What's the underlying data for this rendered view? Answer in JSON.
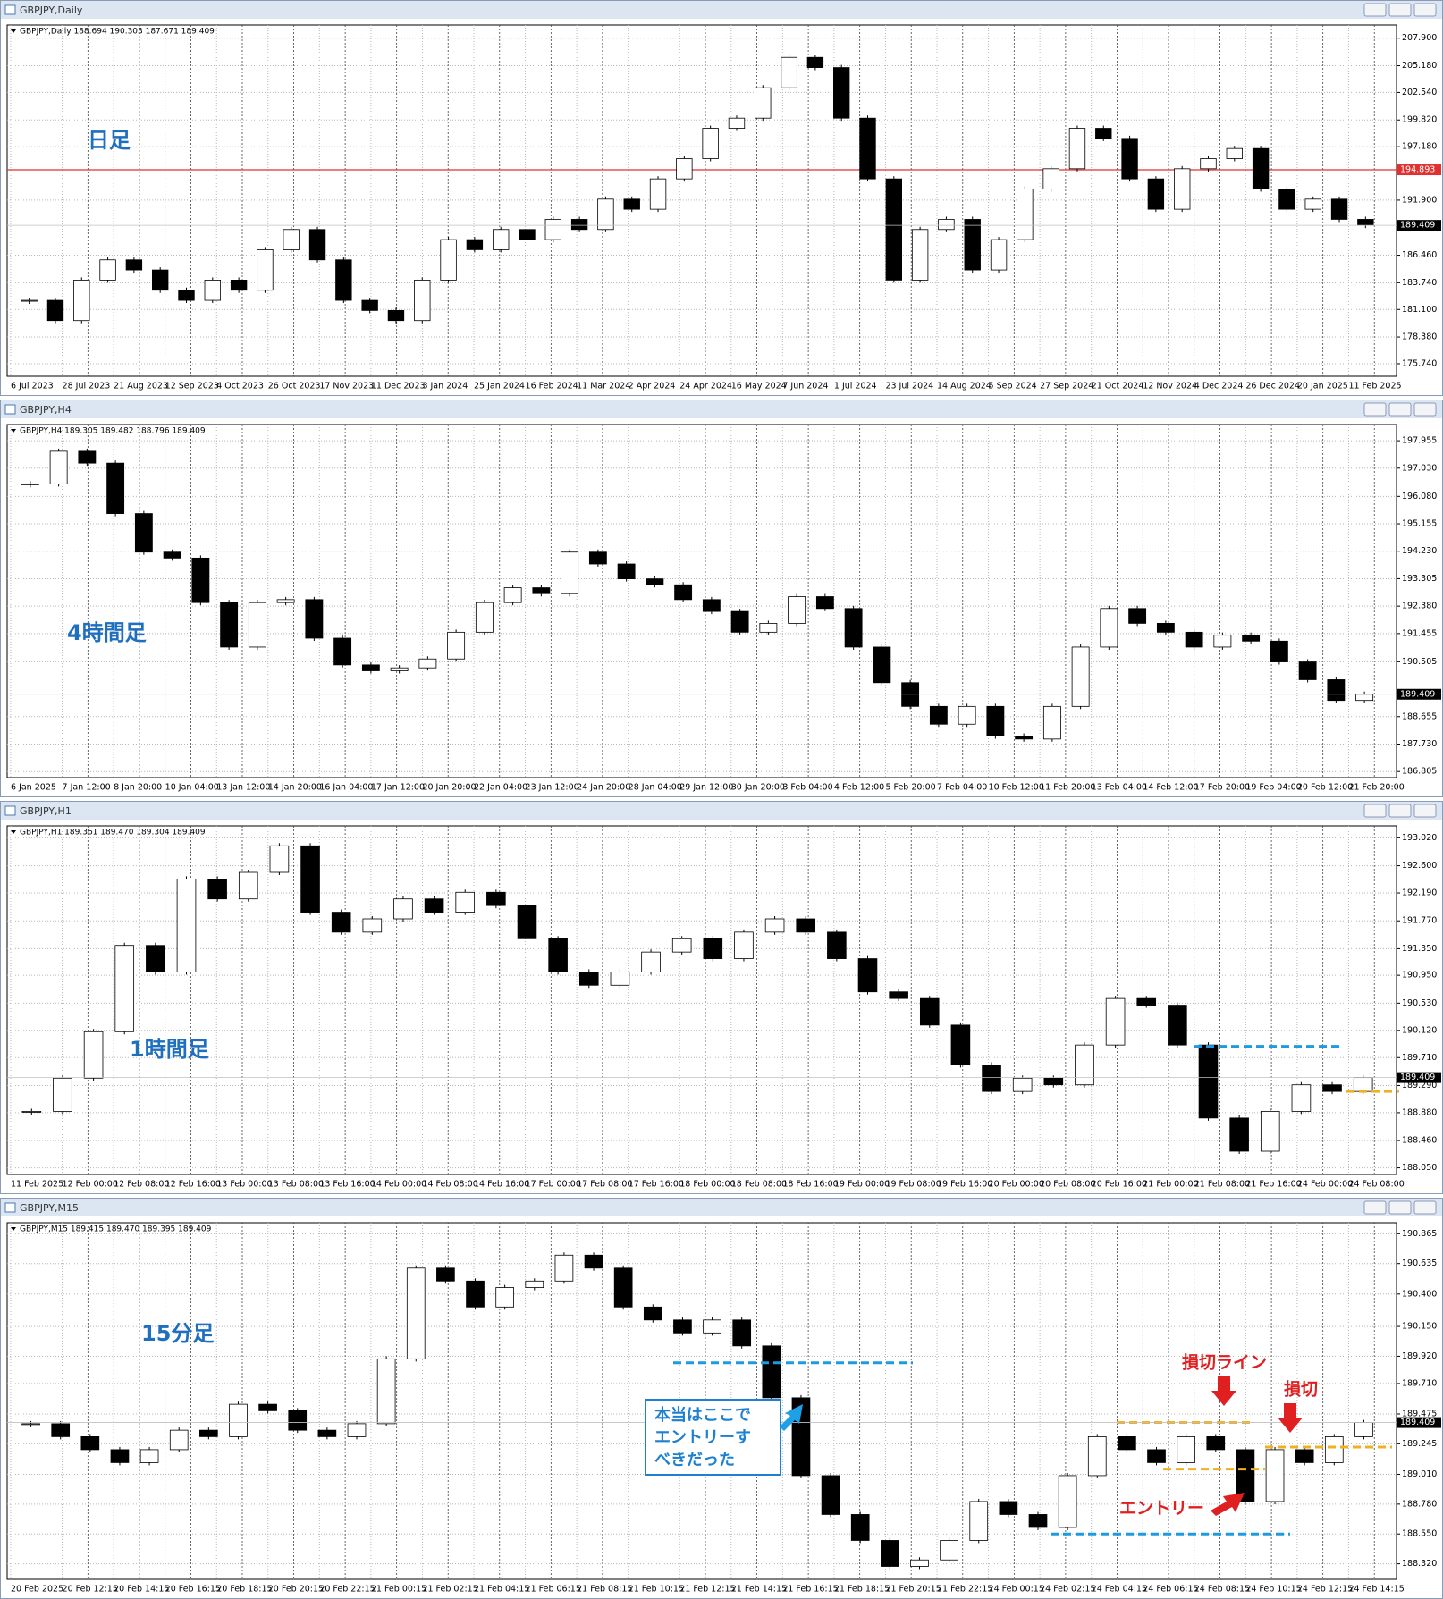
{
  "windows": [
    {
      "title": "GBPJPY,Daily",
      "info": "GBPJPY,Daily  188.694 190.303 187.671 189.409",
      "label": "日足",
      "ylim": [
        174.5,
        209.2
      ],
      "yticks": [
        {
          "value": 207.9,
          "label": "207.900"
        },
        {
          "value": 205.18,
          "label": "205.180"
        },
        {
          "value": 202.54,
          "label": "202.540"
        },
        {
          "value": 199.82,
          "label": "199.820"
        },
        {
          "value": 197.18,
          "label": "197.180"
        },
        {
          "value": 191.9,
          "label": "191.900"
        },
        {
          "value": 186.46,
          "label": "186.460"
        },
        {
          "value": 183.74,
          "label": "183.740"
        },
        {
          "value": 181.1,
          "label": "181.100"
        },
        {
          "value": 178.38,
          "label": "178.380"
        },
        {
          "value": 175.74,
          "label": "175.740"
        }
      ],
      "xlabels": [
        "6 Jul 2023",
        "28 Jul 2023",
        "21 Aug 2023",
        "12 Sep 2023",
        "4 Oct 2023",
        "26 Oct 2023",
        "17 Nov 2023",
        "11 Dec 2023",
        "3 Jan 2024",
        "25 Jan 2024",
        "16 Feb 2024",
        "11 Mar 2024",
        "2 Apr 2024",
        "24 Apr 2024",
        "16 May 2024",
        "7 Jun 2024",
        "1 Jul 2024",
        "23 Jul 2024",
        "14 Aug 2024",
        "5 Sep 2024",
        "27 Sep 2024",
        "21 Oct 2024",
        "12 Nov 2024",
        "4 Dec 2024",
        "26 Dec 2024",
        "20 Jan 2025",
        "11 Feb 2025"
      ],
      "closes": [
        182,
        180,
        184,
        186,
        185,
        183,
        182,
        184,
        183,
        187,
        189,
        186,
        182,
        181,
        180,
        184,
        188,
        187,
        189,
        188,
        190,
        189,
        192,
        191,
        194,
        196,
        199,
        200,
        203,
        206,
        205,
        200,
        194,
        184,
        189,
        190,
        185,
        188,
        193,
        195,
        199,
        198,
        194,
        191,
        195,
        196,
        197,
        193,
        191,
        192,
        190,
        189.409
      ],
      "price": {
        "value": 189.409,
        "label": "189.409"
      },
      "hlines": [
        {
          "value": 194.893,
          "label": "194.893",
          "color": "#e03030"
        }
      ],
      "levels": [],
      "annotations": []
    },
    {
      "title": "GBPJPY,H4",
      "info": "GBPJPY,H4  189.305 189.482 188.796 189.409",
      "label": "4時間足",
      "ylim": [
        186.6,
        198.5
      ],
      "yticks": [
        {
          "value": 197.955,
          "label": "197.955"
        },
        {
          "value": 197.03,
          "label": "197.030"
        },
        {
          "value": 196.08,
          "label": "196.080"
        },
        {
          "value": 195.155,
          "label": "195.155"
        },
        {
          "value": 194.23,
          "label": "194.230"
        },
        {
          "value": 193.305,
          "label": "193.305"
        },
        {
          "value": 192.38,
          "label": "192.380"
        },
        {
          "value": 191.455,
          "label": "191.455"
        },
        {
          "value": 190.505,
          "label": "190.505"
        },
        {
          "value": 188.655,
          "label": "188.655"
        },
        {
          "value": 187.73,
          "label": "187.730"
        },
        {
          "value": 186.805,
          "label": "186.805"
        }
      ],
      "xlabels": [
        "6 Jan 2025",
        "7 Jan 12:00",
        "8 Jan 20:00",
        "10 Jan 04:00",
        "13 Jan 12:00",
        "14 Jan 20:00",
        "16 Jan 04:00",
        "17 Jan 12:00",
        "20 Jan 20:00",
        "22 Jan 04:00",
        "23 Jan 12:00",
        "24 Jan 20:00",
        "28 Jan 04:00",
        "29 Jan 12:00",
        "30 Jan 20:00",
        "3 Feb 04:00",
        "4 Feb 12:00",
        "5 Feb 20:00",
        "7 Feb 04:00",
        "10 Feb 12:00",
        "11 Feb 20:00",
        "13 Feb 04:00",
        "14 Feb 12:00",
        "17 Feb 20:00",
        "19 Feb 04:00",
        "20 Feb 12:00",
        "21 Feb 20:00"
      ],
      "closes": [
        196.5,
        197.6,
        197.2,
        195.5,
        194.2,
        194.0,
        192.5,
        191.0,
        192.5,
        192.6,
        191.3,
        190.4,
        190.2,
        190.3,
        190.6,
        191.5,
        192.5,
        193.0,
        192.8,
        194.2,
        193.8,
        193.3,
        193.1,
        192.6,
        192.2,
        191.5,
        191.8,
        192.7,
        192.3,
        191.0,
        189.8,
        189.0,
        188.4,
        189.0,
        188.0,
        187.9,
        189.0,
        191.0,
        192.3,
        191.8,
        191.5,
        191.0,
        191.4,
        191.2,
        190.5,
        189.9,
        189.2,
        189.409
      ],
      "price": {
        "value": 189.409,
        "label": "189.409"
      },
      "hlines": [],
      "levels": [],
      "annotations": []
    },
    {
      "title": "GBPJPY,H1",
      "info": "GBPJPY,H1  189.361 189.470 189.304 189.409",
      "label": "1時間足",
      "ylim": [
        187.95,
        193.2
      ],
      "yticks": [
        {
          "value": 193.02,
          "label": "193.020"
        },
        {
          "value": 192.6,
          "label": "192.600"
        },
        {
          "value": 192.19,
          "label": "192.190"
        },
        {
          "value": 191.77,
          "label": "191.770"
        },
        {
          "value": 191.35,
          "label": "191.350"
        },
        {
          "value": 190.95,
          "label": "190.950"
        },
        {
          "value": 190.53,
          "label": "190.530"
        },
        {
          "value": 190.12,
          "label": "190.120"
        },
        {
          "value": 189.71,
          "label": "189.710"
        },
        {
          "value": 189.29,
          "label": "189.290"
        },
        {
          "value": 188.88,
          "label": "188.880"
        },
        {
          "value": 188.46,
          "label": "188.460"
        },
        {
          "value": 188.05,
          "label": "188.050"
        }
      ],
      "xlabels": [
        "11 Feb 2025",
        "12 Feb 00:00",
        "12 Feb 08:00",
        "12 Feb 16:00",
        "13 Feb 00:00",
        "13 Feb 08:00",
        "13 Feb 16:00",
        "14 Feb 00:00",
        "14 Feb 08:00",
        "14 Feb 16:00",
        "17 Feb 00:00",
        "17 Feb 08:00",
        "17 Feb 16:00",
        "18 Feb 00:00",
        "18 Feb 08:00",
        "18 Feb 16:00",
        "19 Feb 00:00",
        "19 Feb 08:00",
        "19 Feb 16:00",
        "20 Feb 00:00",
        "20 Feb 08:00",
        "20 Feb 16:00",
        "21 Feb 00:00",
        "21 Feb 08:00",
        "21 Feb 16:00",
        "24 Feb 00:00",
        "24 Feb 08:00"
      ],
      "closes": [
        188.9,
        189.4,
        190.1,
        191.4,
        191.0,
        192.4,
        192.1,
        192.5,
        192.9,
        191.9,
        191.6,
        191.8,
        192.1,
        191.9,
        192.2,
        192.0,
        191.5,
        191.0,
        190.8,
        191.0,
        191.3,
        191.5,
        191.2,
        191.6,
        191.8,
        191.6,
        191.2,
        190.7,
        190.6,
        190.2,
        189.6,
        189.2,
        189.4,
        189.3,
        189.9,
        190.6,
        190.5,
        189.9,
        188.8,
        188.3,
        188.9,
        189.3,
        189.2,
        189.409
      ],
      "price": {
        "value": 189.409,
        "label": "189.409"
      },
      "hlines": [],
      "levels": [
        {
          "value": 189.88,
          "color": "#1e9be0"
        },
        {
          "value": 189.2,
          "color": "#f0b020"
        }
      ],
      "annotations": []
    },
    {
      "title": "GBPJPY,M15",
      "info": "GBPJPY,M15  189.415 189.470 189.395 189.409",
      "label": "15分足",
      "ylim": [
        188.2,
        190.95
      ],
      "yticks": [
        {
          "value": 190.865,
          "label": "190.865"
        },
        {
          "value": 190.635,
          "label": "190.635"
        },
        {
          "value": 190.4,
          "label": "190.400"
        },
        {
          "value": 190.15,
          "label": "190.150"
        },
        {
          "value": 189.92,
          "label": "189.920"
        },
        {
          "value": 189.71,
          "label": "189.710"
        },
        {
          "value": 189.475,
          "label": "189.475"
        },
        {
          "value": 189.245,
          "label": "189.245"
        },
        {
          "value": 189.01,
          "label": "189.010"
        },
        {
          "value": 188.78,
          "label": "188.780"
        },
        {
          "value": 188.55,
          "label": "188.550"
        },
        {
          "value": 188.32,
          "label": "188.320"
        }
      ],
      "xlabels": [
        "20 Feb 2025",
        "20 Feb 12:15",
        "20 Feb 14:15",
        "20 Feb 16:15",
        "20 Feb 18:15",
        "20 Feb 20:15",
        "20 Feb 22:15",
        "21 Feb 00:15",
        "21 Feb 02:15",
        "21 Feb 04:15",
        "21 Feb 06:15",
        "21 Feb 08:15",
        "21 Feb 10:15",
        "21 Feb 12:15",
        "21 Feb 14:15",
        "21 Feb 16:15",
        "21 Feb 18:15",
        "21 Feb 20:15",
        "21 Feb 22:15",
        "24 Feb 00:15",
        "24 Feb 02:15",
        "24 Feb 04:15",
        "24 Feb 06:15",
        "24 Feb 08:15",
        "24 Feb 10:15",
        "24 Feb 12:15",
        "24 Feb 14:15"
      ],
      "closes": [
        189.4,
        189.3,
        189.2,
        189.1,
        189.2,
        189.35,
        189.3,
        189.55,
        189.5,
        189.35,
        189.3,
        189.4,
        189.9,
        190.6,
        190.5,
        190.3,
        190.45,
        190.5,
        190.7,
        190.6,
        190.3,
        190.2,
        190.1,
        190.2,
        190.0,
        189.6,
        189.0,
        188.7,
        188.5,
        188.3,
        188.35,
        188.5,
        188.8,
        188.7,
        188.6,
        189.0,
        189.3,
        189.2,
        189.1,
        189.3,
        189.2,
        188.8,
        189.2,
        189.1,
        189.3,
        189.409
      ],
      "price": {
        "value": 189.409,
        "label": "189.409"
      },
      "hlines": [],
      "levels": [
        {
          "value": 189.87,
          "color": "#1e9be0"
        },
        {
          "value": 188.55,
          "color": "#1e9be0"
        },
        {
          "value": 189.41,
          "color": "#f0b020"
        },
        {
          "value": 189.05,
          "color": "#f0b020"
        },
        {
          "value": 189.22,
          "color": "#f0b020"
        }
      ],
      "annotations": [
        [
          "損切ライン"
        ],
        [
          "損切"
        ],
        [
          "本当はここで",
          "エントリーす",
          "べきだった"
        ],
        [
          "エントリー"
        ]
      ]
    }
  ]
}
